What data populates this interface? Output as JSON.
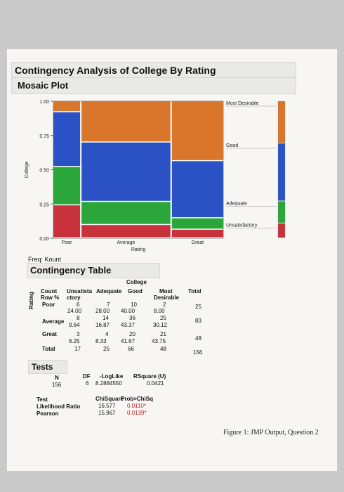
{
  "report": {
    "title": "Contingency Analysis of College By Rating",
    "mosaic_title": "Mosaic Plot",
    "freq_label": "Freq: Kount",
    "contingency_title": "Contingency Table",
    "tests_title": "Tests",
    "caption": "Figure 1: JMP Output, Question 2"
  },
  "chart_data": {
    "type": "mosaic",
    "title": "Mosaic Plot",
    "xlabel": "Rating",
    "ylabel": "College",
    "ylim": [
      0,
      1
    ],
    "y_ticks": [
      "0.00",
      "0.25",
      "0.50",
      "0.75",
      "1.00"
    ],
    "categories": [
      "Poor",
      "Average",
      "Great"
    ],
    "column_widths": [
      25,
      83,
      48
    ],
    "series": [
      {
        "name": "Unsatisfactory",
        "color": "#c8323c",
        "values": [
          0.24,
          0.0964,
          0.0625
        ]
      },
      {
        "name": "Adequate",
        "color": "#2aa63a",
        "values": [
          0.28,
          0.1687,
          0.0833
        ]
      },
      {
        "name": "Good",
        "color": "#2a52c4",
        "values": [
          0.4,
          0.4337,
          0.4167
        ]
      },
      {
        "name": "Most Desirable",
        "color": "#d9762b",
        "values": [
          0.08,
          0.3012,
          0.4375
        ]
      }
    ],
    "legend_labels": [
      "Most Desirable",
      "Good",
      "Adequate",
      "Unsatisfactory"
    ],
    "legend_placement": "right"
  },
  "contingency": {
    "college_label": "College",
    "rating_label": "Rating",
    "corner": [
      "Count",
      "Row %"
    ],
    "col_headers": [
      "Unsatista",
      "Adequate",
      "Good",
      "Most",
      "Total"
    ],
    "col_headers2": [
      "ctory",
      "",
      "",
      "Desirable",
      ""
    ],
    "rows": [
      {
        "label": "Poor",
        "counts": [
          "6",
          "7",
          "10",
          "2"
        ],
        "pcts": [
          "24.00",
          "28.00",
          "40.00",
          "8.00"
        ],
        "total": "25"
      },
      {
        "label": "Average",
        "counts": [
          "8",
          "14",
          "36",
          "25"
        ],
        "pcts": [
          "9.64",
          "16.87",
          "43.37",
          "30.12"
        ],
        "total": "83"
      },
      {
        "label": "Great",
        "counts": [
          "3",
          "4",
          "20",
          "21"
        ],
        "pcts": [
          "6.25",
          "8.33",
          "41.67",
          "43.75"
        ],
        "total": "48"
      },
      {
        "label": "Total",
        "counts": [
          "17",
          "25",
          "66",
          "48"
        ],
        "pcts": [],
        "total": "156"
      }
    ]
  },
  "tests": {
    "headers": [
      "N",
      "DF",
      "-LogLike",
      "RSquare (U)"
    ],
    "values": [
      "156",
      "6",
      "8.2884550",
      "0.0421"
    ],
    "test_header": [
      "Test",
      "ChiSquare",
      "Prob>ChiSq"
    ],
    "rows": [
      {
        "name": "Likelihood Ratio",
        "chisq": "16.577",
        "prob": "0.0110*"
      },
      {
        "name": "Pearson",
        "chisq": "15.967",
        "prob": "0.0139*"
      }
    ]
  }
}
